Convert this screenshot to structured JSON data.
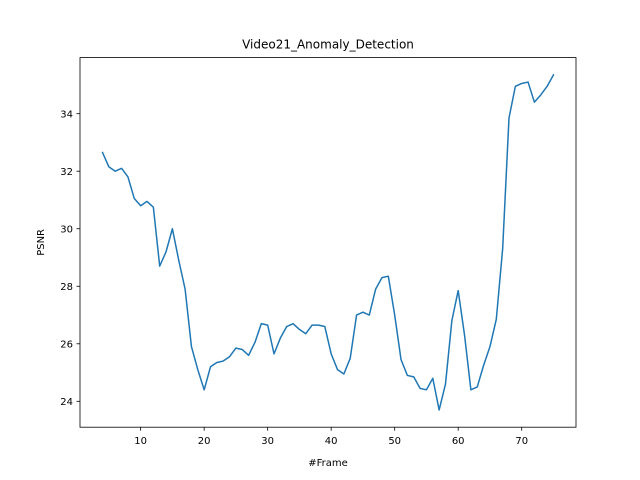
{
  "chart_data": {
    "type": "line",
    "title": "Video21_Anomaly_Detection",
    "xlabel": "#Frame",
    "ylabel": "PSNR",
    "xlim": [
      0.45,
      78.55
    ],
    "ylim": [
      23.1,
      35.95
    ],
    "xticks": [
      10,
      20,
      30,
      40,
      50,
      60,
      70
    ],
    "yticks": [
      24,
      26,
      28,
      30,
      32,
      34
    ],
    "grid": false,
    "legend": "none",
    "series": [
      {
        "color": "#1f77b4",
        "x": [
          4,
          5,
          6,
          7,
          8,
          9,
          10,
          11,
          12,
          13,
          14,
          15,
          16,
          17,
          18,
          19,
          20,
          21,
          22,
          23,
          24,
          25,
          26,
          27,
          28,
          29,
          30,
          31,
          32,
          33,
          34,
          35,
          36,
          37,
          38,
          39,
          40,
          41,
          42,
          43,
          44,
          45,
          46,
          47,
          48,
          49,
          50,
          51,
          52,
          53,
          54,
          55,
          56,
          57,
          58,
          59,
          60,
          61,
          62,
          63,
          64,
          65,
          66,
          67,
          68,
          69,
          70,
          71,
          72,
          73,
          74,
          75
        ],
        "y": [
          32.65,
          32.15,
          32.0,
          32.1,
          31.8,
          31.05,
          30.8,
          30.95,
          30.75,
          28.7,
          29.2,
          30.0,
          28.9,
          27.9,
          25.9,
          25.1,
          24.4,
          25.2,
          25.35,
          25.4,
          25.55,
          25.85,
          25.8,
          25.6,
          26.05,
          26.7,
          26.65,
          25.65,
          26.2,
          26.6,
          26.7,
          26.5,
          26.35,
          26.65,
          26.65,
          26.6,
          25.65,
          25.1,
          24.95,
          25.5,
          27.0,
          27.1,
          27.0,
          27.9,
          28.3,
          28.35,
          27.0,
          25.45,
          24.9,
          24.85,
          24.45,
          24.4,
          24.8,
          23.7,
          24.6,
          26.8,
          27.85,
          26.3,
          24.4,
          24.5,
          25.25,
          25.9,
          26.85,
          29.3,
          33.85,
          34.95,
          35.05,
          35.1,
          34.4,
          34.65,
          34.95,
          35.35
        ]
      }
    ]
  }
}
